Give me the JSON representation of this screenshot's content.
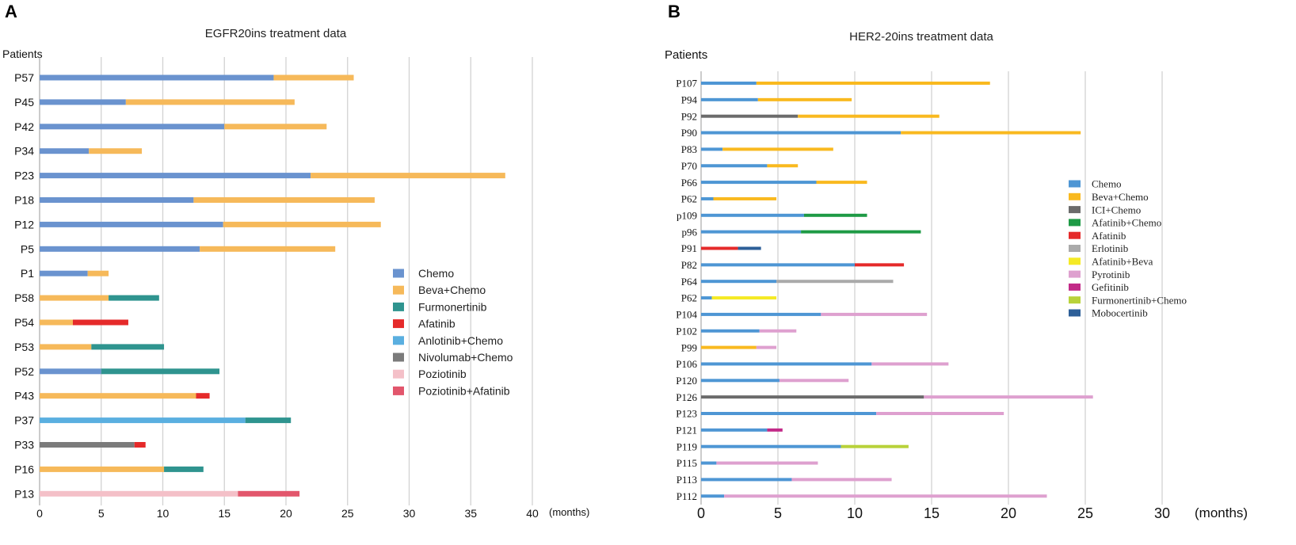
{
  "chart_data": [
    {
      "panel": "A",
      "type": "bar",
      "orientation": "horizontal-stacked",
      "title": "EGFR20ins treatment data",
      "ylabel": "Patients",
      "xlabel": "(months)",
      "xlim": [
        0,
        40
      ],
      "xticks": [
        0,
        5,
        10,
        15,
        20,
        25,
        30,
        35,
        40
      ],
      "legend": [
        {
          "name": "Chemo",
          "color": "#6a93cf"
        },
        {
          "name": "Beva+Chemo",
          "color": "#f6b95a"
        },
        {
          "name": "Furmonertinib",
          "color": "#2f948f"
        },
        {
          "name": "Afatinib",
          "color": "#e52a2a"
        },
        {
          "name": "Anlotinib+Chemo",
          "color": "#5aafe0"
        },
        {
          "name": "Nivolumab+Chemo",
          "color": "#7b7b7b"
        },
        {
          "name": "Poziotinib",
          "color": "#f4c0c8"
        },
        {
          "name": "Poziotinib+Afatinib",
          "color": "#e2566c"
        }
      ],
      "patients": [
        {
          "id": "P57",
          "segments": [
            {
              "t": "Chemo",
              "v": 19
            },
            {
              "t": "Beva+Chemo",
              "v": 6.5
            }
          ]
        },
        {
          "id": "P45",
          "segments": [
            {
              "t": "Chemo",
              "v": 7
            },
            {
              "t": "Beva+Chemo",
              "v": 13.7
            }
          ]
        },
        {
          "id": "P42",
          "segments": [
            {
              "t": "Chemo",
              "v": 15
            },
            {
              "t": "Beva+Chemo",
              "v": 8.3
            }
          ]
        },
        {
          "id": "P34",
          "segments": [
            {
              "t": "Chemo",
              "v": 4
            },
            {
              "t": "Beva+Chemo",
              "v": 4.3
            }
          ]
        },
        {
          "id": "P23",
          "segments": [
            {
              "t": "Chemo",
              "v": 22
            },
            {
              "t": "Beva+Chemo",
              "v": 15.8
            }
          ]
        },
        {
          "id": "P18",
          "segments": [
            {
              "t": "Chemo",
              "v": 12.5
            },
            {
              "t": "Beva+Chemo",
              "v": 14.7
            }
          ]
        },
        {
          "id": "P12",
          "segments": [
            {
              "t": "Chemo",
              "v": 14.9
            },
            {
              "t": "Beva+Chemo",
              "v": 12.8
            }
          ]
        },
        {
          "id": "P5",
          "segments": [
            {
              "t": "Chemo",
              "v": 13
            },
            {
              "t": "Beva+Chemo",
              "v": 11
            }
          ]
        },
        {
          "id": "P1",
          "segments": [
            {
              "t": "Chemo",
              "v": 3.9
            },
            {
              "t": "Beva+Chemo",
              "v": 1.7
            }
          ]
        },
        {
          "id": "P58",
          "segments": [
            {
              "t": "Beva+Chemo",
              "v": 5.6
            },
            {
              "t": "Furmonertinib",
              "v": 4.1
            }
          ]
        },
        {
          "id": "P54",
          "segments": [
            {
              "t": "Beva+Chemo",
              "v": 2.7
            },
            {
              "t": "Afatinib",
              "v": 4.5
            }
          ]
        },
        {
          "id": "P53",
          "segments": [
            {
              "t": "Beva+Chemo",
              "v": 4.2
            },
            {
              "t": "Furmonertinib",
              "v": 5.9
            }
          ]
        },
        {
          "id": "P52",
          "segments": [
            {
              "t": "Chemo",
              "v": 5
            },
            {
              "t": "Furmonertinib",
              "v": 9.6
            }
          ]
        },
        {
          "id": "P43",
          "segments": [
            {
              "t": "Beva+Chemo",
              "v": 12.7
            },
            {
              "t": "Afatinib",
              "v": 1.1
            }
          ]
        },
        {
          "id": "P37",
          "segments": [
            {
              "t": "Anlotinib+Chemo",
              "v": 16.7
            },
            {
              "t": "Furmonertinib",
              "v": 3.7
            }
          ]
        },
        {
          "id": "P33",
          "segments": [
            {
              "t": "Nivolumab+Chemo",
              "v": 7.7
            },
            {
              "t": "Afatinib",
              "v": 0.9
            }
          ]
        },
        {
          "id": "P16",
          "segments": [
            {
              "t": "Beva+Chemo",
              "v": 10.1
            },
            {
              "t": "Furmonertinib",
              "v": 3.2
            }
          ]
        },
        {
          "id": "P13",
          "segments": [
            {
              "t": "Poziotinib",
              "v": 16.1
            },
            {
              "t": "Poziotinib+Afatinib",
              "v": 5
            }
          ]
        }
      ]
    },
    {
      "panel": "B",
      "type": "bar",
      "orientation": "horizontal-stacked",
      "title": "HER2-20ins treatment data",
      "ylabel": "Patients",
      "xlabel": "(months)",
      "xlim": [
        0,
        30
      ],
      "xticks": [
        0,
        5,
        10,
        15,
        20,
        25,
        30
      ],
      "legend": [
        {
          "name": "Chemo",
          "color": "#4e96d4"
        },
        {
          "name": "Beva+Chemo",
          "color": "#f9b91f"
        },
        {
          "name": "ICI+Chemo",
          "color": "#6b6b6b"
        },
        {
          "name": "Afatinib+Chemo",
          "color": "#1e9a45"
        },
        {
          "name": "Afatinib",
          "color": "#e52a2a"
        },
        {
          "name": "Erlotinib",
          "color": "#aaaaaa"
        },
        {
          "name": "Afatinib+Beva",
          "color": "#f5ea25"
        },
        {
          "name": "Pyrotinib",
          "color": "#dea0cf"
        },
        {
          "name": "Gefitinib",
          "color": "#c22a88"
        },
        {
          "name": "Furmonertinib+Chemo",
          "color": "#b8d23a"
        },
        {
          "name": "Mobocertinib",
          "color": "#2d5f98"
        }
      ],
      "patients": [
        {
          "id": "P107",
          "segments": [
            {
              "t": "Chemo",
              "v": 3.6
            },
            {
              "t": "Beva+Chemo",
              "v": 15.2
            }
          ]
        },
        {
          "id": "P94",
          "segments": [
            {
              "t": "Chemo",
              "v": 3.7
            },
            {
              "t": "Beva+Chemo",
              "v": 6.1
            }
          ]
        },
        {
          "id": "P92",
          "segments": [
            {
              "t": "ICI+Chemo",
              "v": 6.3
            },
            {
              "t": "Beva+Chemo",
              "v": 9.2
            }
          ]
        },
        {
          "id": "P90",
          "segments": [
            {
              "t": "Chemo",
              "v": 13
            },
            {
              "t": "Beva+Chemo",
              "v": 11.7
            }
          ]
        },
        {
          "id": "P83",
          "segments": [
            {
              "t": "Chemo",
              "v": 1.4
            },
            {
              "t": "Beva+Chemo",
              "v": 7.2
            }
          ]
        },
        {
          "id": "P70",
          "segments": [
            {
              "t": "Chemo",
              "v": 4.3
            },
            {
              "t": "Beva+Chemo",
              "v": 2
            }
          ]
        },
        {
          "id": "P66",
          "segments": [
            {
              "t": "Chemo",
              "v": 7.5
            },
            {
              "t": "Beva+Chemo",
              "v": 3.3
            }
          ]
        },
        {
          "id": "P62",
          "segments": [
            {
              "t": "Chemo",
              "v": 0.8
            },
            {
              "t": "Beva+Chemo",
              "v": 4.1
            }
          ]
        },
        {
          "id": "p109",
          "segments": [
            {
              "t": "Chemo",
              "v": 6.7
            },
            {
              "t": "Afatinib+Chemo",
              "v": 4.1
            }
          ]
        },
        {
          "id": "p96",
          "segments": [
            {
              "t": "Chemo",
              "v": 6.5
            },
            {
              "t": "Afatinib+Chemo",
              "v": 7.8
            }
          ]
        },
        {
          "id": "P91",
          "segments": [
            {
              "t": "Afatinib",
              "v": 2.4
            },
            {
              "t": "Mobocertinib",
              "v": 1.5
            }
          ]
        },
        {
          "id": "P82",
          "segments": [
            {
              "t": "Chemo",
              "v": 10
            },
            {
              "t": "Afatinib",
              "v": 3.2
            }
          ]
        },
        {
          "id": "P64",
          "segments": [
            {
              "t": "Chemo",
              "v": 4.9
            },
            {
              "t": "Erlotinib",
              "v": 7.6
            }
          ]
        },
        {
          "id": "P62",
          "segments": [
            {
              "t": "Chemo",
              "v": 0.7
            },
            {
              "t": "Afatinib+Beva",
              "v": 4.2
            }
          ]
        },
        {
          "id": "P104",
          "segments": [
            {
              "t": "Chemo",
              "v": 7.8
            },
            {
              "t": "Pyrotinib",
              "v": 6.9
            }
          ]
        },
        {
          "id": "P102",
          "segments": [
            {
              "t": "Chemo",
              "v": 3.8
            },
            {
              "t": "Pyrotinib",
              "v": 2.4
            }
          ]
        },
        {
          "id": "P99",
          "segments": [
            {
              "t": "Beva+Chemo",
              "v": 3.6
            },
            {
              "t": "Pyrotinib",
              "v": 1.3
            }
          ]
        },
        {
          "id": "P106",
          "segments": [
            {
              "t": "Chemo",
              "v": 11.1
            },
            {
              "t": "Pyrotinib",
              "v": 5
            }
          ]
        },
        {
          "id": "P120",
          "segments": [
            {
              "t": "Chemo",
              "v": 5.1
            },
            {
              "t": "Pyrotinib",
              "v": 4.5
            }
          ]
        },
        {
          "id": "P126",
          "segments": [
            {
              "t": "ICI+Chemo",
              "v": 14.5
            },
            {
              "t": "Pyrotinib",
              "v": 11
            }
          ]
        },
        {
          "id": "P123",
          "segments": [
            {
              "t": "Chemo",
              "v": 11.4
            },
            {
              "t": "Pyrotinib",
              "v": 8.3
            }
          ]
        },
        {
          "id": "P121",
          "segments": [
            {
              "t": "Chemo",
              "v": 4.3
            },
            {
              "t": "Gefitinib",
              "v": 1
            }
          ]
        },
        {
          "id": "P119",
          "segments": [
            {
              "t": "Chemo",
              "v": 9.1
            },
            {
              "t": "Furmonertinib+Chemo",
              "v": 4.4
            }
          ]
        },
        {
          "id": "P115",
          "segments": [
            {
              "t": "Chemo",
              "v": 1
            },
            {
              "t": "Pyrotinib",
              "v": 6.6
            }
          ]
        },
        {
          "id": "P113",
          "segments": [
            {
              "t": "Chemo",
              "v": 5.9
            },
            {
              "t": "Pyrotinib",
              "v": 6.5
            }
          ]
        },
        {
          "id": "P112",
          "segments": [
            {
              "t": "Chemo",
              "v": 1.5
            },
            {
              "t": "Pyrotinib",
              "v": 21
            }
          ]
        }
      ]
    }
  ]
}
